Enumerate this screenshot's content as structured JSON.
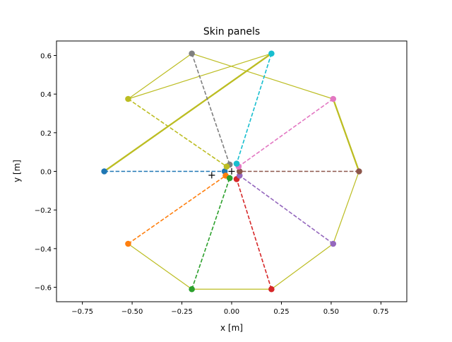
{
  "chart_data": {
    "type": "line",
    "title": "Skin panels",
    "xlabel": "x [m]",
    "ylabel": "y [m]",
    "xlim": [
      -0.88,
      0.88
    ],
    "ylim": [
      -0.675,
      0.675
    ],
    "xticks": [
      -0.75,
      -0.5,
      -0.25,
      0.0,
      0.25,
      0.5,
      0.75
    ],
    "xtick_labels": [
      "−0.75",
      "−0.50",
      "−0.25",
      "0.00",
      "0.25",
      "0.50",
      "0.75"
    ],
    "yticks": [
      -0.6,
      -0.4,
      -0.2,
      0.0,
      0.2,
      0.4,
      0.6
    ],
    "ytick_labels": [
      "−0.6",
      "−0.4",
      "−0.2",
      "0.0",
      "0.2",
      "0.4",
      "0.6"
    ],
    "grid": false,
    "legend": "none",
    "outline_color": "#bcbd22",
    "outline_thin": [
      [
        [
          -0.2,
          0.61
        ],
        [
          0.51,
          0.375
        ]
      ],
      [
        [
          0.51,
          0.375
        ],
        [
          0.64,
          0.0
        ]
      ],
      [
        [
          -0.2,
          0.61
        ],
        [
          -0.52,
          0.375
        ]
      ],
      [
        [
          -0.52,
          0.375
        ],
        [
          0.2,
          0.61
        ]
      ],
      [
        [
          0.64,
          0.0
        ],
        [
          0.51,
          -0.375
        ]
      ],
      [
        [
          0.51,
          -0.375
        ],
        [
          0.2,
          -0.61
        ]
      ],
      [
        [
          0.2,
          -0.61
        ],
        [
          -0.2,
          -0.61
        ]
      ],
      [
        [
          -0.2,
          -0.61
        ],
        [
          -0.52,
          -0.375
        ]
      ]
    ],
    "outline_thick": [
      [
        [
          -0.64,
          0.0
        ],
        [
          0.2,
          0.61
        ]
      ],
      [
        [
          0.51,
          0.375
        ],
        [
          0.64,
          0.0
        ]
      ]
    ],
    "spokes": [
      {
        "color": "#1f77b4",
        "outer": [
          -0.64,
          0.0
        ],
        "inner": [
          -0.035,
          0.0
        ]
      },
      {
        "color": "#ff7f0e",
        "outer": [
          -0.52,
          -0.375
        ],
        "inner": [
          -0.03,
          -0.022
        ]
      },
      {
        "color": "#2ca02c",
        "outer": [
          -0.2,
          -0.61
        ],
        "inner": [
          -0.01,
          -0.035
        ]
      },
      {
        "color": "#d62728",
        "outer": [
          0.2,
          -0.61
        ],
        "inner": [
          0.025,
          -0.04
        ]
      },
      {
        "color": "#9467bd",
        "outer": [
          0.51,
          -0.375
        ],
        "inner": [
          0.04,
          -0.022
        ]
      },
      {
        "color": "#8c564b",
        "outer": [
          0.64,
          0.0
        ],
        "inner": [
          0.04,
          0.0
        ]
      },
      {
        "color": "#e377c2",
        "outer": [
          0.51,
          0.375
        ],
        "inner": [
          0.035,
          0.025
        ]
      },
      {
        "color": "#17becf",
        "outer": [
          0.2,
          0.61
        ],
        "inner": [
          0.025,
          0.04
        ]
      },
      {
        "color": "#7f7f7f",
        "outer": [
          -0.2,
          0.61
        ],
        "inner": [
          -0.01,
          0.035
        ]
      },
      {
        "color": "#bcbd22",
        "outer": [
          -0.52,
          0.375
        ],
        "inner": [
          -0.025,
          0.025
        ]
      }
    ],
    "plus_markers": [
      [
        -0.1,
        -0.02
      ],
      [
        0.0,
        0.0
      ]
    ]
  }
}
